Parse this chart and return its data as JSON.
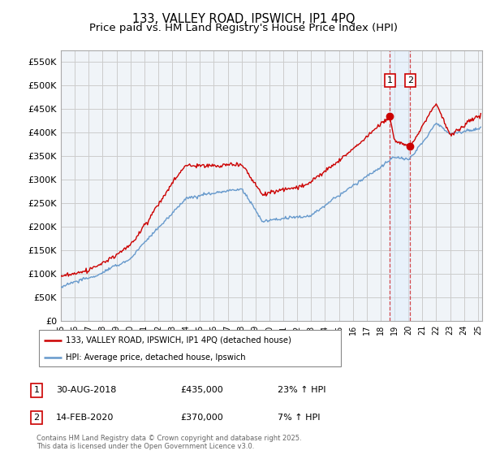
{
  "title": "133, VALLEY ROAD, IPSWICH, IP1 4PQ",
  "subtitle": "Price paid vs. HM Land Registry's House Price Index (HPI)",
  "ylim": [
    0,
    575000
  ],
  "yticks": [
    0,
    50000,
    100000,
    150000,
    200000,
    250000,
    300000,
    350000,
    400000,
    450000,
    500000,
    550000
  ],
  "ytick_labels": [
    "£0",
    "£50K",
    "£100K",
    "£150K",
    "£200K",
    "£250K",
    "£300K",
    "£350K",
    "£400K",
    "£450K",
    "£500K",
    "£550K"
  ],
  "red_line_color": "#cc0000",
  "blue_line_color": "#6699cc",
  "shaded_color": "#ddeeff",
  "grid_color": "#cccccc",
  "background_color": "#f0f4f8",
  "marker1_date": "30-AUG-2018",
  "marker1_price": 435000,
  "marker1_pct": "23%",
  "marker2_date": "14-FEB-2020",
  "marker2_price": 370000,
  "marker2_pct": "7%",
  "marker1_x": 2018.667,
  "marker2_x": 2020.125,
  "legend_label_red": "133, VALLEY ROAD, IPSWICH, IP1 4PQ (detached house)",
  "legend_label_blue": "HPI: Average price, detached house, Ipswich",
  "footer": "Contains HM Land Registry data © Crown copyright and database right 2025.\nThis data is licensed under the Open Government Licence v3.0.",
  "title_fontsize": 10.5,
  "subtitle_fontsize": 9.5,
  "xmin": 1995,
  "xmax": 2025.3
}
